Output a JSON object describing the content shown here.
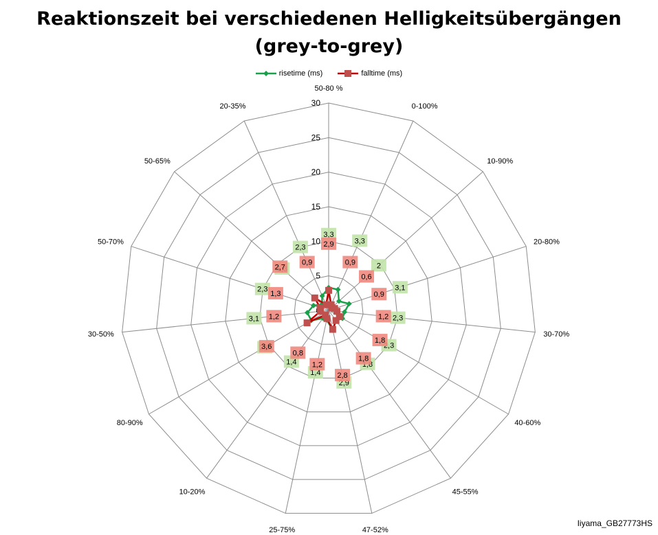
{
  "title_line1": "Reaktionszeit bei verschiedenen Helligkeitsübergängen",
  "title_line2": "(grey-to-grey)",
  "watermark": "Iiyama_GB27773HS",
  "colors": {
    "rise_line": "#1aa04b",
    "fall_line": "#c0504d",
    "rise_label_bg": "#c2e3a8",
    "fall_label_bg": "#f08a80",
    "grid": "#8c8c8c"
  },
  "chart_data": {
    "type": "radar",
    "title": "Reaktionszeit bei verschiedenen Helligkeitsübergängen (grey-to-grey)",
    "categories": [
      "50-80 %",
      "0-100%",
      "10-90%",
      "20-80%",
      "30-70%",
      "40-60%",
      "45-55%",
      "47-52%",
      "25-75%",
      "10-20%",
      "80-90%",
      "30-50%",
      "50-70%",
      "50-65%",
      "20-35%"
    ],
    "rlim": [
      0,
      30
    ],
    "ticks": [
      0,
      5,
      10,
      15,
      20,
      25,
      30
    ],
    "grid": true,
    "legend": "top",
    "series": [
      {
        "name": "risetime (ms)",
        "values": [
          3.3,
          3.3,
          2,
          3.1,
          2.3,
          2.3,
          1.8,
          2.9,
          1.4,
          1.4,
          2.9,
          3.1,
          2.3,
          1.3,
          2.3
        ],
        "labels": [
          "3,3",
          "3,3",
          "2",
          "3,1",
          "2,3",
          "2,3",
          "1,8",
          "2,9",
          "1,4",
          "1,4",
          "2,9",
          "3,1",
          "2,3",
          "1,3",
          "2,3"
        ]
      },
      {
        "name": "falltime (ms)",
        "values": [
          2.9,
          0.9,
          0.6,
          0.9,
          1.2,
          1.8,
          1.8,
          2.8,
          1.2,
          0.8,
          3.6,
          1.2,
          1.3,
          2.7,
          0.9
        ],
        "labels": [
          "2,9",
          "0,9",
          "0,6",
          "0,9",
          "1,2",
          "1,8",
          "1,8",
          "2,8",
          "1,2",
          "0,8",
          "3,6",
          "1,2",
          "1,3",
          "2,7",
          "0,9"
        ]
      }
    ]
  }
}
